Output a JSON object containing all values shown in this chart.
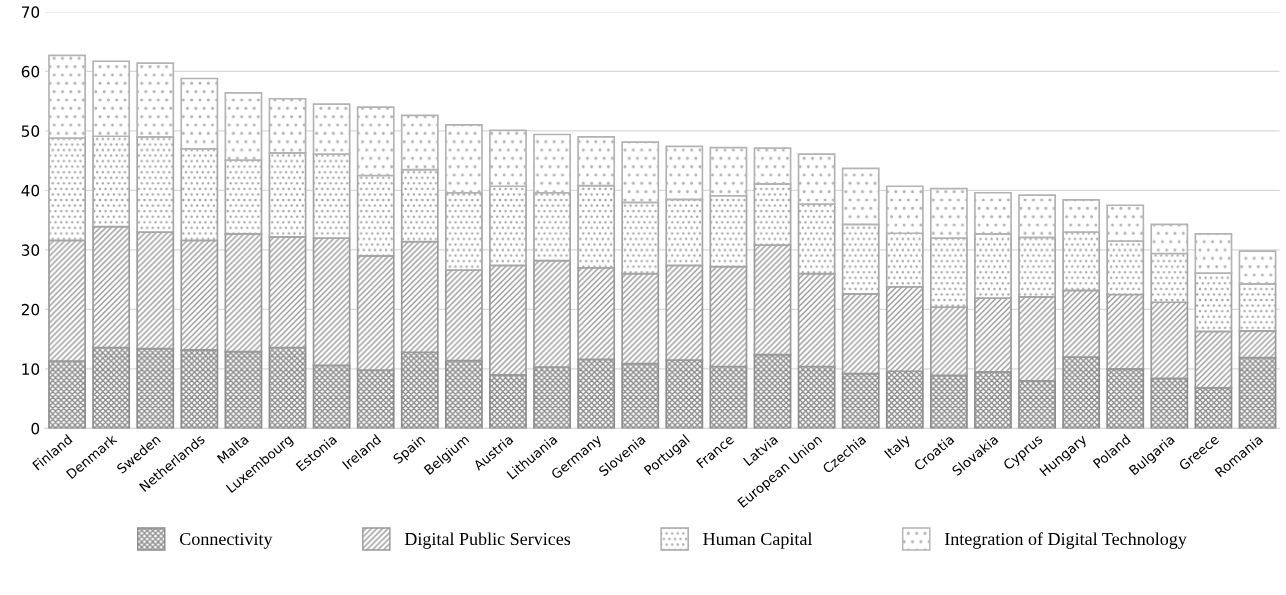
{
  "chart_data": {
    "type": "bar",
    "stacked": true,
    "categories": [
      "Finland",
      "Denmark",
      "Sweden",
      "Netherlands",
      "Malta",
      "Luxembourg",
      "Estonia",
      "Ireland",
      "Spain",
      "Belgium",
      "Austria",
      "Lithuania",
      "Germany",
      "Slovenia",
      "Portugal",
      "France",
      "Latvia",
      "European Union",
      "Czechia",
      "Italy",
      "Croatia",
      "Slovakia",
      "Cyprus",
      "Hungary",
      "Poland",
      "Bulgaria",
      "Greece",
      "Romania"
    ],
    "series": [
      {
        "name": "Connectivity",
        "color": "#8c8c8c",
        "values": [
          11.3,
          13.6,
          13.4,
          13.2,
          12.9,
          13.6,
          10.6,
          9.8,
          12.8,
          11.4,
          9.0,
          10.3,
          11.6,
          10.9,
          11.5,
          10.4,
          12.4,
          10.4,
          9.2,
          9.6,
          8.9,
          9.5,
          8.0,
          12.0,
          10.0,
          8.4,
          6.8,
          11.9
        ]
      },
      {
        "name": "Digital Public Services",
        "color": "#999999",
        "values": [
          20.3,
          20.3,
          19.6,
          18.4,
          19.8,
          18.6,
          21.4,
          19.2,
          18.6,
          15.2,
          18.4,
          17.9,
          15.4,
          15.1,
          15.9,
          16.8,
          18.4,
          15.6,
          13.4,
          14.2,
          11.5,
          12.4,
          14.1,
          11.2,
          12.5,
          12.8,
          9.5,
          4.5
        ]
      },
      {
        "name": "Human Capital",
        "color": "#a6a6a6",
        "values": [
          17.2,
          15.2,
          16.0,
          15.4,
          12.4,
          14.1,
          14.1,
          13.5,
          12.1,
          13.0,
          13.3,
          11.4,
          13.8,
          12.0,
          11.1,
          11.9,
          10.3,
          11.7,
          11.7,
          9.0,
          11.6,
          10.8,
          10.0,
          9.8,
          9.0,
          8.2,
          9.8,
          7.9
        ]
      },
      {
        "name": "Integration of Digital Technology",
        "color": "#b3b3b3",
        "values": [
          13.9,
          12.6,
          12.4,
          11.8,
          11.3,
          9.1,
          8.4,
          11.5,
          9.1,
          11.4,
          9.4,
          9.8,
          8.2,
          10.1,
          8.9,
          8.1,
          6.0,
          8.4,
          9.4,
          7.9,
          8.3,
          6.9,
          7.1,
          5.4,
          6.0,
          4.9,
          6.6,
          5.5
        ]
      }
    ],
    "ylim": [
      0,
      70
    ],
    "yticks": [
      0,
      10,
      20,
      30,
      40,
      50,
      60,
      70
    ],
    "grid": "y",
    "legend": "bottom"
  }
}
